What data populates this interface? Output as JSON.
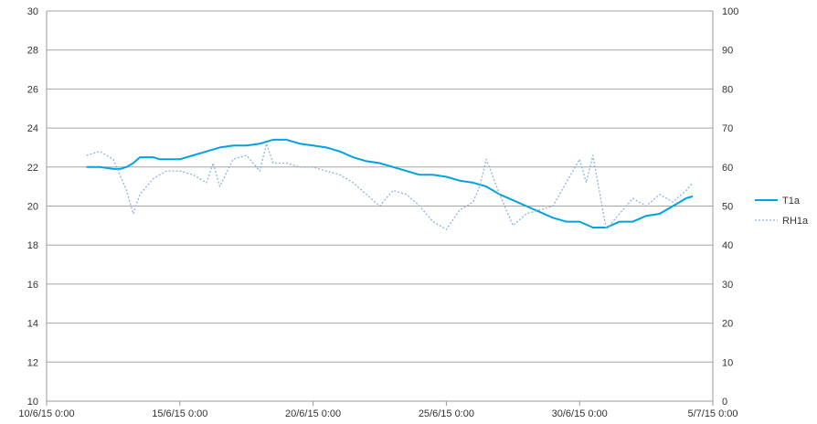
{
  "chart_data": {
    "type": "line",
    "title": "",
    "xlabel": "",
    "ylabel": "",
    "x_axis": {
      "min": "10/6/15 0:00",
      "max": "5/7/15 0:00",
      "tick_labels": [
        "10/6/15 0:00",
        "15/6/15 0:00",
        "20/6/15 0:00",
        "25/6/15 0:00",
        "30/6/15 0:00",
        "5/7/15 0:00"
      ]
    },
    "y_left": {
      "min": 10,
      "max": 30,
      "step": 2,
      "tick_labels": [
        "10",
        "12",
        "14",
        "16",
        "18",
        "20",
        "22",
        "24",
        "26",
        "28",
        "30"
      ]
    },
    "y_right": {
      "min": 0,
      "max": 100,
      "step": 10,
      "tick_labels": [
        "0",
        "10",
        "20",
        "30",
        "40",
        "50",
        "60",
        "70",
        "80",
        "90",
        "100"
      ]
    },
    "grid": true,
    "legend_position": "right",
    "series": [
      {
        "name": "T1a",
        "axis": "left",
        "color": "#00a2e0",
        "style": "solid",
        "points": [
          [
            "11/6/15 12:00",
            22.0
          ],
          [
            "12/6/15 0:00",
            22.0
          ],
          [
            "12/6/15 12:00",
            21.9
          ],
          [
            "12/6/15 18:00",
            21.9
          ],
          [
            "13/6/15 0:00",
            22.0
          ],
          [
            "13/6/15 6:00",
            22.2
          ],
          [
            "13/6/15 12:00",
            22.5
          ],
          [
            "14/6/15 0:00",
            22.5
          ],
          [
            "14/6/15 6:00",
            22.4
          ],
          [
            "15/6/15 0:00",
            22.4
          ],
          [
            "15/6/15 12:00",
            22.6
          ],
          [
            "16/6/15 0:00",
            22.8
          ],
          [
            "16/6/15 12:00",
            23.0
          ],
          [
            "17/6/15 0:00",
            23.1
          ],
          [
            "17/6/15 12:00",
            23.1
          ],
          [
            "18/6/15 0:00",
            23.2
          ],
          [
            "18/6/15 12:00",
            23.4
          ],
          [
            "19/6/15 0:00",
            23.4
          ],
          [
            "19/6/15 12:00",
            23.2
          ],
          [
            "20/6/15 0:00",
            23.1
          ],
          [
            "20/6/15 12:00",
            23.0
          ],
          [
            "21/6/15 0:00",
            22.8
          ],
          [
            "21/6/15 12:00",
            22.5
          ],
          [
            "22/6/15 0:00",
            22.3
          ],
          [
            "22/6/15 12:00",
            22.2
          ],
          [
            "23/6/15 0:00",
            22.0
          ],
          [
            "23/6/15 12:00",
            21.8
          ],
          [
            "24/6/15 0:00",
            21.6
          ],
          [
            "24/6/15 12:00",
            21.6
          ],
          [
            "25/6/15 0:00",
            21.5
          ],
          [
            "25/6/15 12:00",
            21.3
          ],
          [
            "26/6/15 0:00",
            21.2
          ],
          [
            "26/6/15 12:00",
            21.0
          ],
          [
            "27/6/15 0:00",
            20.6
          ],
          [
            "27/6/15 12:00",
            20.3
          ],
          [
            "28/6/15 0:00",
            20.0
          ],
          [
            "28/6/15 12:00",
            19.7
          ],
          [
            "29/6/15 0:00",
            19.4
          ],
          [
            "29/6/15 12:00",
            19.2
          ],
          [
            "30/6/15 0:00",
            19.2
          ],
          [
            "30/6/15 12:00",
            18.9
          ],
          [
            "1/7/15 0:00",
            18.9
          ],
          [
            "1/7/15 12:00",
            19.2
          ],
          [
            "2/7/15 0:00",
            19.2
          ],
          [
            "2/7/15 12:00",
            19.5
          ],
          [
            "3/7/15 0:00",
            19.6
          ],
          [
            "3/7/15 12:00",
            20.0
          ],
          [
            "4/7/15 0:00",
            20.4
          ],
          [
            "4/7/15 6:00",
            20.5
          ]
        ]
      },
      {
        "name": "RH1a",
        "axis": "right",
        "color": "#8ab4e0",
        "style": "dotted",
        "points": [
          [
            "11/6/15 12:00",
            63
          ],
          [
            "12/6/15 0:00",
            64
          ],
          [
            "12/6/15 12:00",
            62
          ],
          [
            "12/6/15 18:00",
            58
          ],
          [
            "13/6/15 0:00",
            54
          ],
          [
            "13/6/15 6:00",
            48
          ],
          [
            "13/6/15 12:00",
            53
          ],
          [
            "14/6/15 0:00",
            57
          ],
          [
            "14/6/15 12:00",
            59
          ],
          [
            "15/6/15 0:00",
            59
          ],
          [
            "15/6/15 12:00",
            58
          ],
          [
            "16/6/15 0:00",
            56
          ],
          [
            "16/6/15 6:00",
            61
          ],
          [
            "16/6/15 12:00",
            55
          ],
          [
            "17/6/15 0:00",
            62
          ],
          [
            "17/6/15 12:00",
            63
          ],
          [
            "18/6/15 0:00",
            59
          ],
          [
            "18/6/15 6:00",
            66
          ],
          [
            "18/6/15 12:00",
            61
          ],
          [
            "19/6/15 0:00",
            61
          ],
          [
            "19/6/15 12:00",
            60
          ],
          [
            "20/6/15 0:00",
            60
          ],
          [
            "20/6/15 12:00",
            59
          ],
          [
            "21/6/15 0:00",
            58
          ],
          [
            "21/6/15 12:00",
            56
          ],
          [
            "22/6/15 0:00",
            53
          ],
          [
            "22/6/15 12:00",
            50
          ],
          [
            "23/6/15 0:00",
            54
          ],
          [
            "23/6/15 12:00",
            53
          ],
          [
            "24/6/15 0:00",
            50
          ],
          [
            "24/6/15 12:00",
            46
          ],
          [
            "25/6/15 0:00",
            44
          ],
          [
            "25/6/15 12:00",
            49
          ],
          [
            "26/6/15 0:00",
            51
          ],
          [
            "26/6/15 6:00",
            55
          ],
          [
            "26/6/15 12:00",
            62
          ],
          [
            "27/6/15 0:00",
            53
          ],
          [
            "27/6/15 12:00",
            45
          ],
          [
            "28/6/15 0:00",
            48
          ],
          [
            "28/6/15 12:00",
            49
          ],
          [
            "29/6/15 0:00",
            50
          ],
          [
            "29/6/15 12:00",
            56
          ],
          [
            "30/6/15 0:00",
            62
          ],
          [
            "30/6/15 6:00",
            56
          ],
          [
            "30/6/15 12:00",
            63
          ],
          [
            "1/7/15 0:00",
            44
          ],
          [
            "1/7/15 12:00",
            48
          ],
          [
            "2/7/15 0:00",
            52
          ],
          [
            "2/7/15 12:00",
            50
          ],
          [
            "3/7/15 0:00",
            53
          ],
          [
            "3/7/15 12:00",
            51
          ],
          [
            "4/7/15 0:00",
            54
          ],
          [
            "4/7/15 6:00",
            56
          ]
        ]
      }
    ]
  }
}
